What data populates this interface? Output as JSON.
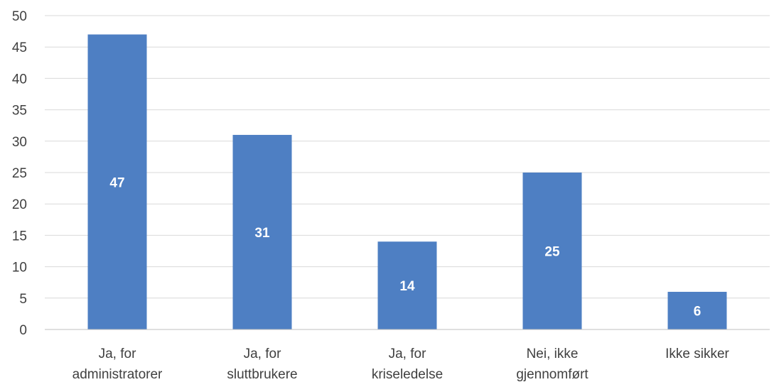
{
  "chart_data": {
    "type": "bar",
    "categories": [
      [
        "Ja, for",
        "administratorer"
      ],
      [
        "Ja, for",
        "sluttbrukere"
      ],
      [
        "Ja, for",
        "kriseledelse"
      ],
      [
        "Nei, ikke",
        "gjennomført"
      ],
      [
        "Ikke sikker"
      ]
    ],
    "values": [
      47,
      31,
      14,
      25,
      6
    ],
    "data_labels": [
      "47",
      "31",
      "14",
      "25",
      "6"
    ],
    "ylim": [
      0,
      50
    ],
    "yticks": [
      0,
      5,
      10,
      15,
      20,
      25,
      30,
      35,
      40,
      45,
      50
    ],
    "grid": true,
    "legend": "none",
    "bar_color": "#4e7fc3",
    "title": "",
    "xlabel": "",
    "ylabel": ""
  }
}
